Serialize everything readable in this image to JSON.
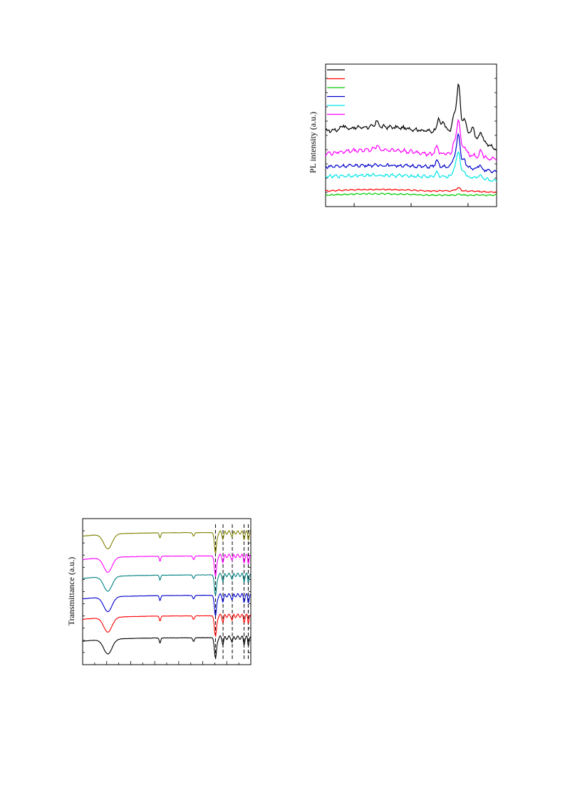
{
  "chart_data": [
    {
      "type": "line",
      "title": "",
      "xlabel": "",
      "ylabel": "PL intensity (a.u.)",
      "x_range": [
        0,
        100
      ],
      "y_range": [
        0,
        100
      ],
      "legend": "top-left",
      "legend_labels_visible": false,
      "grid": false,
      "series": [
        {
          "color": "#000000",
          "baseline": 53,
          "peaks": [
            [
              10,
              3
            ],
            [
              30,
              4
            ],
            [
              66,
              9
            ],
            [
              69,
              7
            ],
            [
              75,
              10
            ],
            [
              77,
              13
            ],
            [
              78,
              24
            ],
            [
              81,
              9
            ],
            [
              86,
              5
            ],
            [
              91,
              5
            ]
          ],
          "tail": 40
        },
        {
          "color": "#ff0000",
          "baseline": 11,
          "peaks": [
            [
              76,
              1
            ],
            [
              78,
              2
            ]
          ],
          "tail": 10
        },
        {
          "color": "#00cc00",
          "baseline": 8,
          "peaks": [
            [
              78,
              1
            ]
          ],
          "tail": 8
        },
        {
          "color": "#0000cc",
          "baseline": 28,
          "peaks": [
            [
              65,
              4
            ],
            [
              75,
              6
            ],
            [
              77,
              10
            ],
            [
              78,
              16
            ],
            [
              81,
              5
            ],
            [
              90,
              3
            ]
          ],
          "tail": 24
        },
        {
          "color": "#00e5e5",
          "baseline": 21,
          "peaks": [
            [
              65,
              3
            ],
            [
              75,
              5
            ],
            [
              77,
              8
            ],
            [
              78,
              13
            ],
            [
              81,
              4
            ],
            [
              90,
              2
            ]
          ],
          "tail": 18
        },
        {
          "color": "#ff00ff",
          "baseline": 37,
          "peaks": [
            [
              30,
              3
            ],
            [
              65,
              5
            ],
            [
              75,
              7
            ],
            [
              77,
              10
            ],
            [
              78,
              18
            ],
            [
              81,
              6
            ],
            [
              91,
              4
            ]
          ],
          "tail": 33
        }
      ]
    },
    {
      "type": "line",
      "title": "",
      "xlabel": "",
      "ylabel": "Transmittance (a.u.)",
      "x_range": [
        0,
        100
      ],
      "y_range": [
        0,
        100
      ],
      "grid": false,
      "dashed_reference_lines_x": [
        79,
        83.5,
        89,
        96,
        98.5
      ],
      "series": [
        {
          "color": "#808000",
          "baseline": 88
        },
        {
          "color": "#ff00ff",
          "baseline": 72
        },
        {
          "color": "#008080",
          "baseline": 59
        },
        {
          "color": "#0000cc",
          "baseline": 45
        },
        {
          "color": "#ff0000",
          "baseline": 31
        },
        {
          "color": "#000000",
          "baseline": 16
        }
      ],
      "dips": [
        [
          15,
          10,
          4
        ],
        [
          46,
          3.5,
          0.6
        ],
        [
          66,
          2.5,
          0.7
        ],
        [
          79,
          14,
          0.9
        ],
        [
          83.5,
          4,
          0.6
        ],
        [
          89,
          3,
          0.5
        ],
        [
          96,
          4,
          0.5
        ],
        [
          98.5,
          5,
          0.4
        ]
      ]
    }
  ]
}
